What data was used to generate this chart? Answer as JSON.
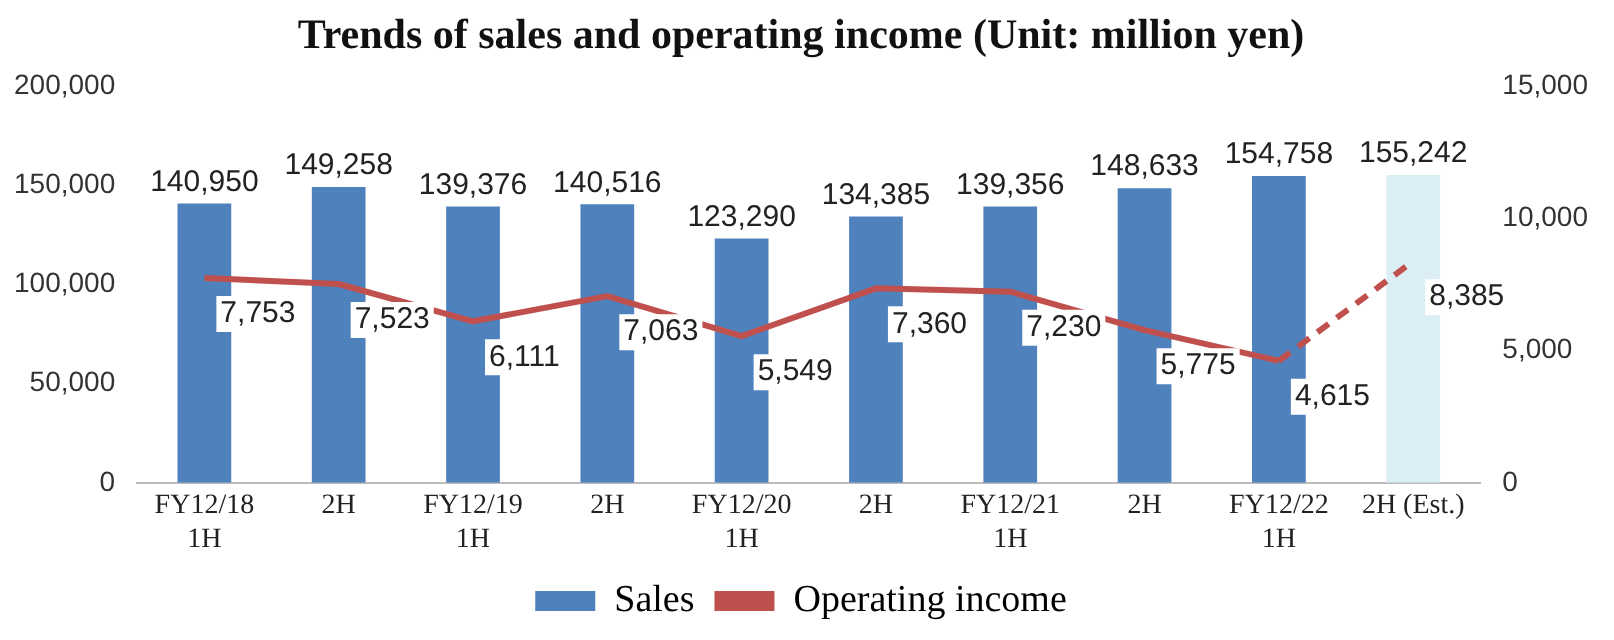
{
  "chart_data": {
    "type": "bar",
    "title": "Trends of sales and operating income (Unit: million yen)",
    "categories": [
      "FY12/18\n1H",
      "2H",
      "FY12/19\n1H",
      "2H",
      "FY12/20\n1H",
      "2H",
      "FY12/21\n1H",
      "2H",
      "FY12/22\n1H",
      "2H (Est.)"
    ],
    "series": [
      {
        "name": "Sales",
        "color": "#4f81bd",
        "colors": [
          "#4f81bd",
          "#4f81bd",
          "#4f81bd",
          "#4f81bd",
          "#4f81bd",
          "#4f81bd",
          "#4f81bd",
          "#4f81bd",
          "#4f81bd",
          "#daeef3"
        ],
        "values": [
          140950,
          149258,
          139376,
          140516,
          123290,
          134385,
          139356,
          148633,
          154758,
          155242
        ],
        "value_labels": [
          "140,950",
          "149,258",
          "139,376",
          "140,516",
          "123,290",
          "134,385",
          "139,356",
          "148,633",
          "154,758",
          "155,242"
        ]
      },
      {
        "name": "Operating income",
        "type": "line",
        "axis": "y2",
        "color": "#c0504d",
        "line_style": "solid",
        "values": [
          7753,
          7523,
          6111,
          7063,
          5549,
          7360,
          7230,
          5775,
          4615,
          null
        ],
        "value_labels": [
          "7,753",
          "7,523",
          "6,111",
          "7,063",
          "5,549",
          "7,360",
          "7,230",
          "5,775",
          "4,615",
          null
        ]
      },
      {
        "type": "line",
        "axis": "y2",
        "color": "#c0504d",
        "line_style": "dashed",
        "values": [
          null,
          null,
          null,
          null,
          null,
          null,
          null,
          null,
          4615,
          8385
        ],
        "value_labels": [
          null,
          null,
          null,
          null,
          null,
          null,
          null,
          null,
          null,
          "8,385"
        ]
      }
    ],
    "ylim": [
      0,
      200000
    ],
    "yticks": [
      0,
      {
        "value": 50000,
        "label": "50,000"
      },
      {
        "value": 100000,
        "label": "100,000"
      },
      {
        "value": 150000,
        "label": "150,000"
      },
      {
        "value": 200000,
        "label": "200,000"
      }
    ],
    "y2lim": [
      0,
      15000
    ],
    "y2ticks": [
      0,
      {
        "value": 5000,
        "label": "5,000"
      },
      {
        "value": 10000,
        "label": "10,000"
      },
      {
        "value": 15000,
        "label": "15,000"
      }
    ],
    "grid": false,
    "legend": "bottom",
    "marker": "none"
  }
}
